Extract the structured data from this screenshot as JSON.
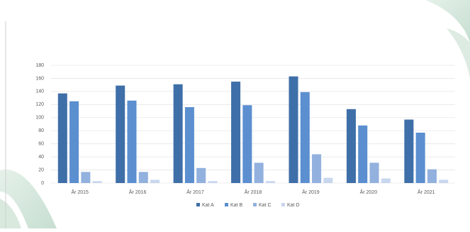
{
  "chart_data": {
    "type": "bar",
    "categories": [
      "År 2015",
      "År 2016",
      "År 2017",
      "År 2018",
      "År 2019",
      "År 2020",
      "År 2021"
    ],
    "series": [
      {
        "name": "Kat A",
        "color": "#3f6fa8",
        "values": [
          137,
          149,
          151,
          155,
          163,
          113,
          97
        ]
      },
      {
        "name": "Kat B",
        "color": "#5b8fd0",
        "values": [
          125,
          126,
          116,
          119,
          139,
          88,
          77
        ]
      },
      {
        "name": "Kat C",
        "color": "#93b1de",
        "values": [
          17,
          17,
          23,
          31,
          44,
          31,
          21
        ]
      },
      {
        "name": "Kat D",
        "color": "#c9d7ee",
        "values": [
          3,
          5,
          3,
          3,
          8,
          7,
          5
        ]
      }
    ],
    "ylim": [
      0,
      180
    ],
    "yticks": [
      0,
      20,
      40,
      60,
      80,
      100,
      120,
      140,
      160,
      180
    ],
    "grid": true
  }
}
